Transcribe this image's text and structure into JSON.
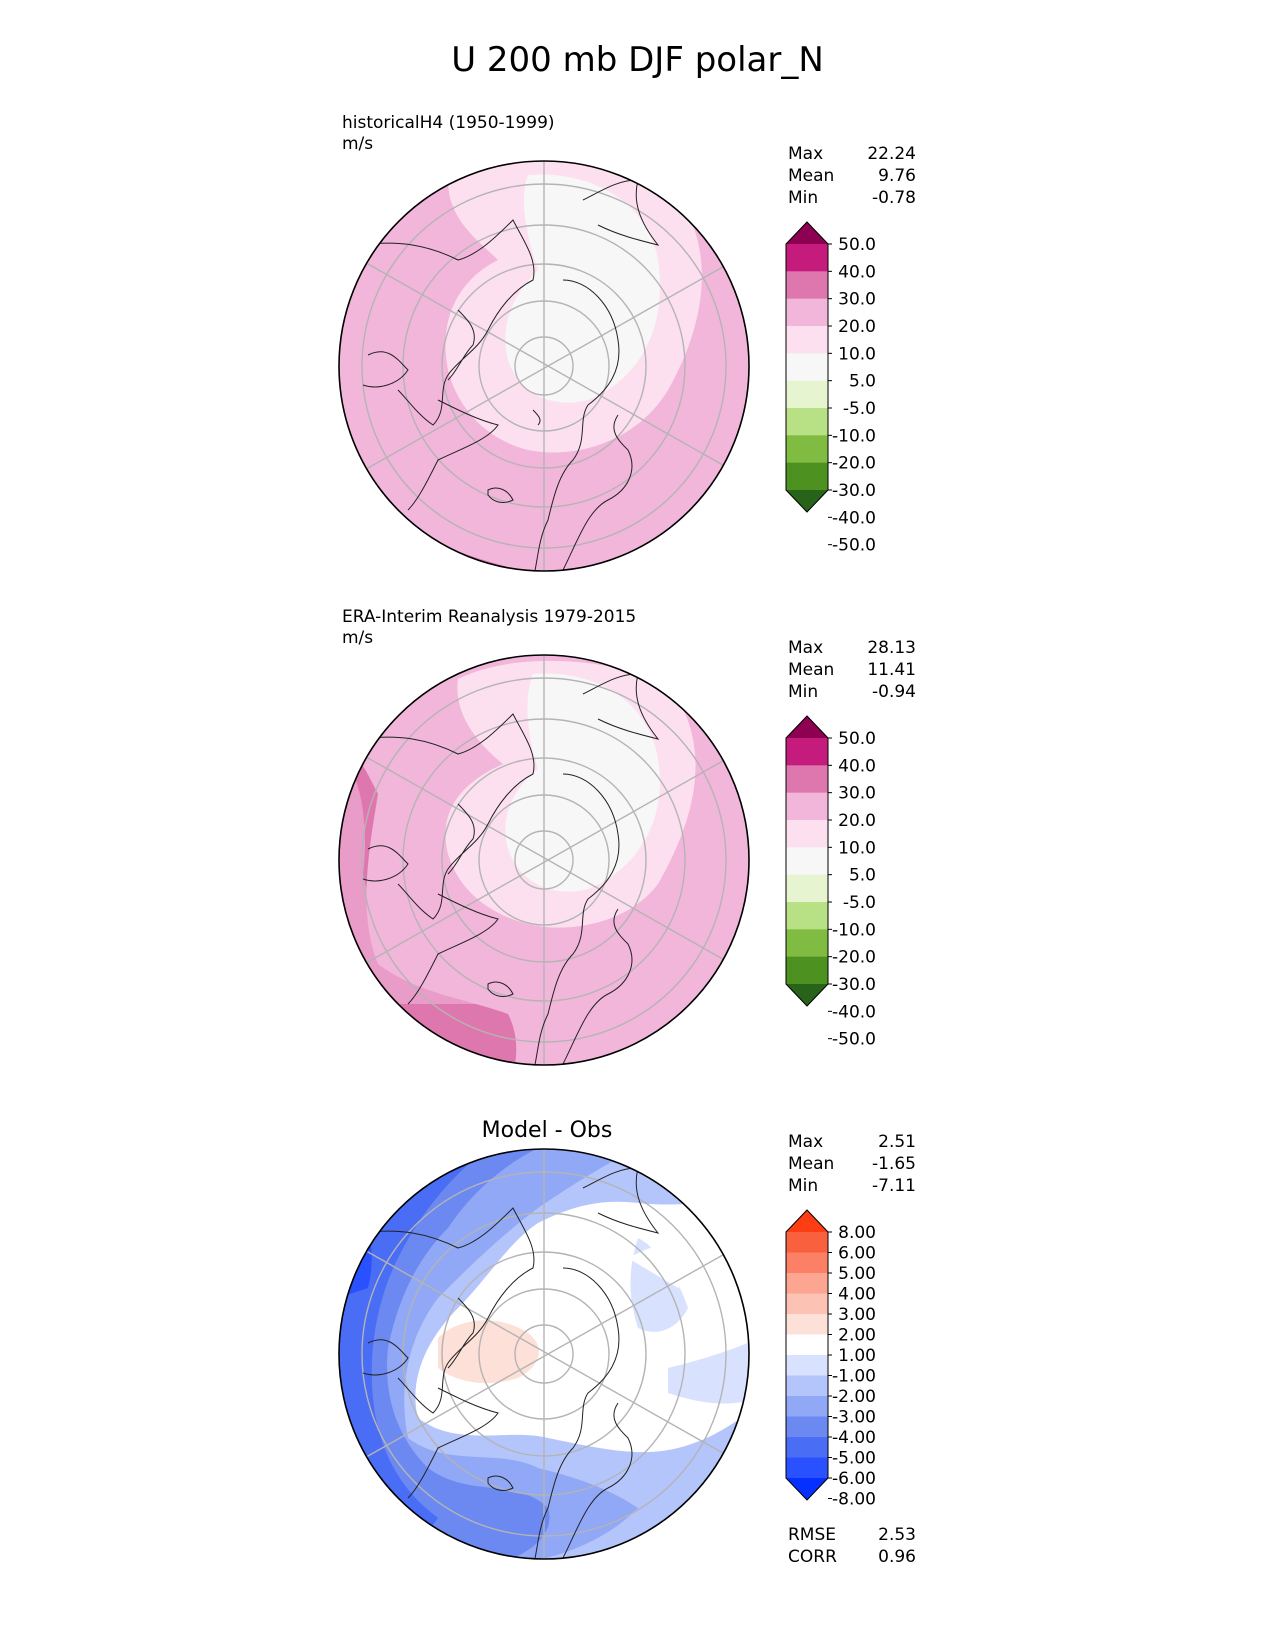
{
  "title": "U 200 mb DJF polar_N",
  "panels": [
    {
      "label_line1": "historicalH4 (1950-1999)",
      "label_line2": "m/s",
      "stats": [
        {
          "label": "Max",
          "value": "22.24"
        },
        {
          "label": "Mean",
          "value": "9.76"
        },
        {
          "label": "Min",
          "value": "-0.78"
        }
      ],
      "colorbar": {
        "colors": [
          "#276419",
          "#4d9221",
          "#7fbc41",
          "#b8e186",
          "#e6f5d0",
          "#f7f7f7",
          "#fde0ef",
          "#f1b6da",
          "#de77ae",
          "#c51b7d",
          "#8e0152"
        ],
        "ticks": [
          "-50.0",
          "-40.0",
          "-30.0",
          "-20.0",
          "-10.0",
          "-5.0",
          "5.0",
          "10.0",
          "20.0",
          "30.0",
          "40.0",
          "50.0"
        ]
      }
    },
    {
      "label_line1": "ERA-Interim Reanalysis 1979-2015",
      "label_line2": "m/s",
      "stats": [
        {
          "label": "Max",
          "value": "28.13"
        },
        {
          "label": "Mean",
          "value": "11.41"
        },
        {
          "label": "Min",
          "value": "-0.94"
        }
      ],
      "colorbar": {
        "colors": [
          "#276419",
          "#4d9221",
          "#7fbc41",
          "#b8e186",
          "#e6f5d0",
          "#f7f7f7",
          "#fde0ef",
          "#f1b6da",
          "#de77ae",
          "#c51b7d",
          "#8e0152"
        ],
        "ticks": [
          "-50.0",
          "-40.0",
          "-30.0",
          "-20.0",
          "-10.0",
          "-5.0",
          "5.0",
          "10.0",
          "20.0",
          "30.0",
          "40.0",
          "50.0"
        ]
      }
    },
    {
      "title": "Model - Obs",
      "stats": [
        {
          "label": "Max",
          "value": "2.51"
        },
        {
          "label": "Mean",
          "value": "-1.65"
        },
        {
          "label": "Min",
          "value": "-7.11"
        }
      ],
      "colorbar": {
        "colors": [
          "#0530ff",
          "#2a51ff",
          "#4a6df5",
          "#6c89f2",
          "#90a8f5",
          "#b4c5fb",
          "#d8e2ff",
          "#ffffff",
          "#fde0d8",
          "#fcc3b4",
          "#fca590",
          "#fb8066",
          "#f9603e",
          "#fd3d14"
        ],
        "ticks": [
          "-8.00",
          "-6.00",
          "-5.00",
          "-4.00",
          "-3.00",
          "-2.00",
          "-1.00",
          "1.00",
          "2.00",
          "3.00",
          "4.00",
          "5.00",
          "6.00",
          "8.00"
        ]
      },
      "bottom_stats": [
        {
          "label": "RMSE",
          "value": "2.53"
        },
        {
          "label": "CORR",
          "value": "0.96"
        }
      ]
    }
  ],
  "chart_data": [
    {
      "type": "heatmap",
      "projection": "north polar stereographic",
      "field": "U 200 mb DJF",
      "units": "m/s",
      "max": 22.24,
      "mean": 9.76,
      "min": -0.78,
      "levels": [
        -50,
        -40,
        -30,
        -20,
        -10,
        -5,
        5,
        10,
        20,
        30,
        40,
        50
      ]
    },
    {
      "type": "heatmap",
      "projection": "north polar stereographic",
      "field": "U 200 mb DJF",
      "units": "m/s",
      "max": 28.13,
      "mean": 11.41,
      "min": -0.94,
      "levels": [
        -50,
        -40,
        -30,
        -20,
        -10,
        -5,
        5,
        10,
        20,
        30,
        40,
        50
      ]
    },
    {
      "type": "heatmap",
      "projection": "north polar stereographic",
      "field": "Model - Obs",
      "max": 2.51,
      "mean": -1.65,
      "min": -7.11,
      "rmse": 2.53,
      "corr": 0.96,
      "levels": [
        -8,
        -6,
        -5,
        -4,
        -3,
        -2,
        -1,
        1,
        2,
        3,
        4,
        5,
        6,
        8
      ]
    }
  ]
}
